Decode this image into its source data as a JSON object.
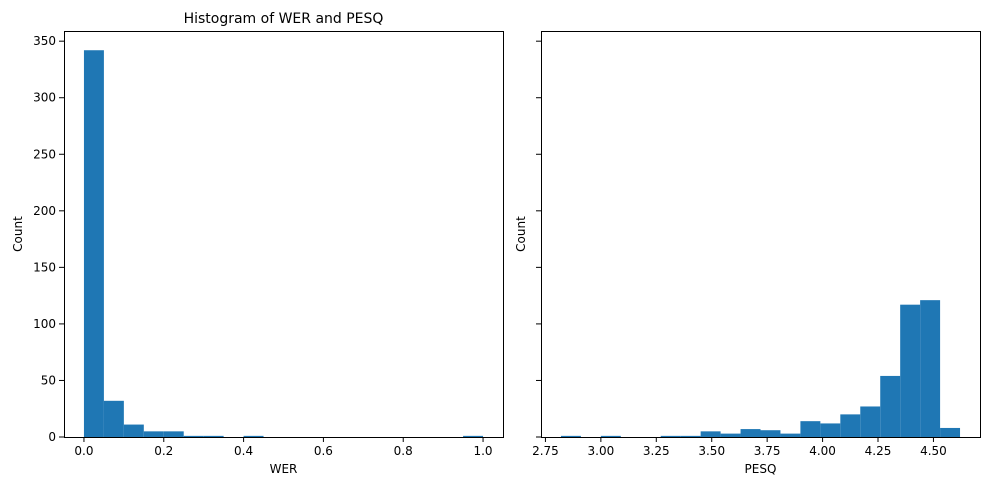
{
  "chart_data": [
    {
      "type": "bar",
      "title": "Histogram of WER and PESQ",
      "xlabel": "WER",
      "ylabel": "Count",
      "xlim": [
        -0.05,
        1.05
      ],
      "ylim": [
        0,
        359
      ],
      "xticks": [
        0.0,
        0.2,
        0.4,
        0.6,
        0.8,
        1.0
      ],
      "xtick_labels": [
        "0.0",
        "0.2",
        "0.4",
        "0.6",
        "0.8",
        "1.0"
      ],
      "yticks": [
        0,
        50,
        100,
        150,
        200,
        250,
        300,
        350
      ],
      "ytick_labels": [
        "0",
        "50",
        "100",
        "150",
        "200",
        "250",
        "300",
        "350"
      ],
      "bin_edges": [
        0.0,
        0.05,
        0.1,
        0.15,
        0.2,
        0.25,
        0.3,
        0.35,
        0.4,
        0.45,
        0.5,
        0.55,
        0.6,
        0.65,
        0.7,
        0.75,
        0.8,
        0.85,
        0.9,
        0.95,
        1.0
      ],
      "values": [
        342,
        32,
        11,
        5,
        5,
        1,
        1,
        0,
        1,
        0,
        0,
        0,
        0,
        0,
        0,
        0,
        0,
        0,
        0,
        1
      ],
      "color": "#1f77b4",
      "grid": false
    },
    {
      "type": "bar",
      "title": "",
      "xlabel": "PESQ",
      "ylabel": "Count",
      "xlim": [
        2.73,
        4.71
      ],
      "ylim": [
        0,
        359
      ],
      "xticks": [
        2.75,
        3.0,
        3.25,
        3.5,
        3.75,
        4.0,
        4.25,
        4.5
      ],
      "xtick_labels": [
        "2.75",
        "3.00",
        "3.25",
        "3.50",
        "3.75",
        "4.00",
        "4.25",
        "4.50"
      ],
      "yticks": [
        0,
        50,
        100,
        150,
        200,
        250,
        300,
        350
      ],
      "ytick_labels": [
        "",
        "",
        "",
        "",
        "",
        "",
        "",
        ""
      ],
      "bin_edges": [
        2.82,
        2.91,
        3.0,
        3.09,
        3.18,
        3.27,
        3.36,
        3.45,
        3.54,
        3.63,
        3.72,
        3.81,
        3.9,
        3.99,
        4.08,
        4.17,
        4.26,
        4.35,
        4.44,
        4.53,
        4.62
      ],
      "values": [
        1,
        0,
        1,
        0,
        0,
        1,
        1,
        5,
        3,
        7,
        6,
        3,
        14,
        12,
        20,
        27,
        54,
        117,
        121,
        8
      ],
      "color": "#1f77b4",
      "grid": false
    }
  ]
}
